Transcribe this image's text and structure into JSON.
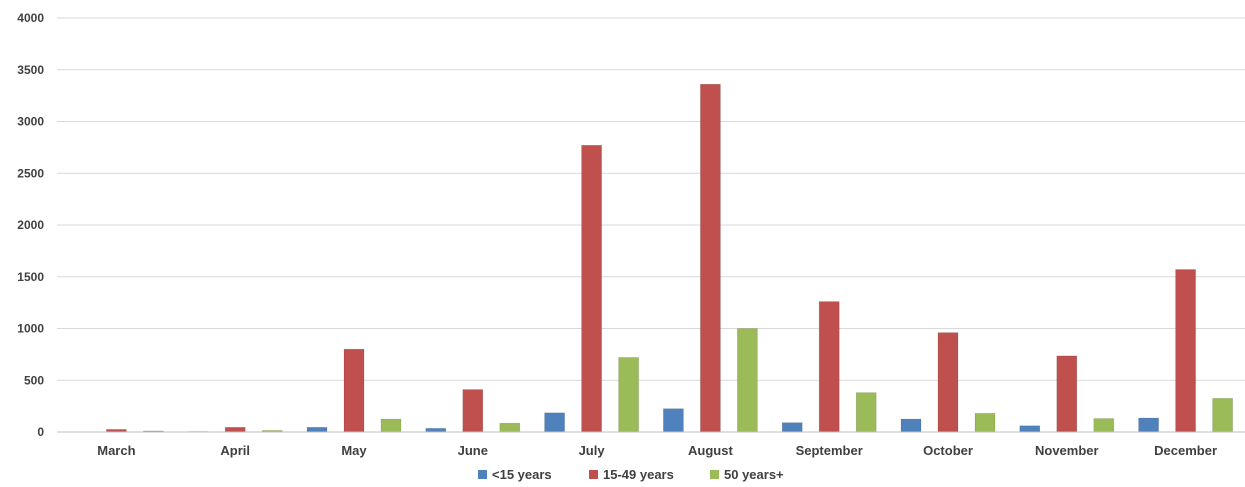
{
  "chart_data": {
    "type": "bar",
    "title": "",
    "xlabel": "",
    "ylabel": "",
    "categories": [
      "March",
      "April",
      "May",
      "June",
      "July",
      "August",
      "September",
      "October",
      "November",
      "December"
    ],
    "ylim": [
      0,
      4000
    ],
    "yticks": [
      0,
      500,
      1000,
      1500,
      2000,
      2500,
      3000,
      3500,
      4000
    ],
    "grid": true,
    "legend_position": "bottom",
    "series": [
      {
        "name": "<15 years",
        "color": "#4F81BD",
        "values": [
          0,
          5,
          45,
          35,
          185,
          225,
          90,
          125,
          60,
          135
        ]
      },
      {
        "name": "15-49 years",
        "color": "#C0504D",
        "values": [
          25,
          45,
          800,
          410,
          2770,
          3360,
          1260,
          960,
          735,
          1570
        ]
      },
      {
        "name": "50 years+",
        "color": "#9BBB59",
        "values": [
          10,
          15,
          125,
          85,
          720,
          1000,
          380,
          180,
          130,
          325
        ]
      }
    ]
  }
}
